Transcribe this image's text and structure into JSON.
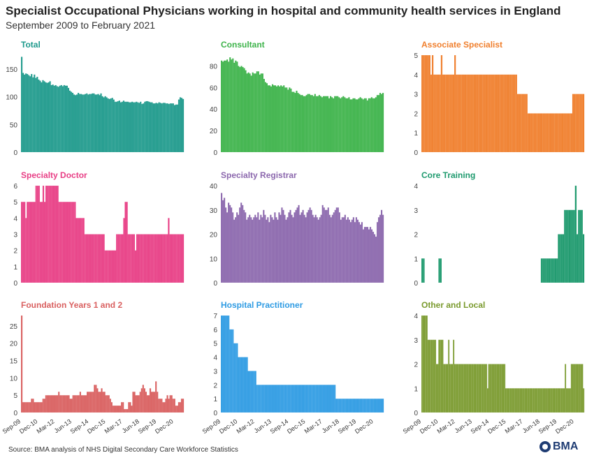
{
  "title": "Specialist Occupational Physicians working in hospital and community health services in England",
  "subtitle": "September 2009 to February 2021",
  "source": "Source: BMA analysis of NHS Digital Secondary Care Workforce Statistics",
  "logo_text": "BMA",
  "chart_data": [
    {
      "type": "bar",
      "title": "Total",
      "color": "#1e9a8c",
      "ylim": [
        0,
        175
      ],
      "yticks": [
        0,
        50,
        100,
        150
      ],
      "x_tick_labels": [],
      "series": [
        {
          "values": [
            172,
            143,
            140,
            142,
            141,
            139,
            137,
            141,
            135,
            140,
            134,
            136,
            131,
            129,
            126,
            130,
            128,
            126,
            125,
            126,
            128,
            121,
            122,
            120,
            121,
            119,
            118,
            120,
            121,
            119,
            121,
            120,
            120,
            116,
            111,
            109,
            107,
            104,
            103,
            104,
            107,
            105,
            105,
            104,
            104,
            105,
            106,
            104,
            105,
            105,
            106,
            106,
            104,
            104,
            105,
            103,
            106,
            101,
            99,
            101,
            99,
            97,
            96,
            97,
            98,
            95,
            91,
            91,
            92,
            93,
            90,
            91,
            93,
            91,
            91,
            91,
            90,
            90,
            91,
            90,
            90,
            91,
            90,
            89,
            91,
            87,
            88,
            91,
            92,
            92,
            91,
            90,
            90,
            88,
            88,
            89,
            88,
            90,
            89,
            88,
            89,
            89,
            88,
            88,
            87,
            88,
            88,
            88,
            85,
            86,
            86,
            95,
            99,
            98,
            96
          ]
        }
      ]
    },
    {
      "type": "bar",
      "title": "Consultant",
      "color": "#3db34a",
      "ylim": [
        0,
        90
      ],
      "yticks": [
        0,
        20,
        40,
        60,
        80
      ],
      "x_tick_labels": [],
      "series": [
        {
          "values": [
            85,
            84,
            85,
            85,
            86,
            84,
            88,
            86,
            87,
            83,
            85,
            84,
            80,
            79,
            80,
            79,
            78,
            76,
            73,
            74,
            73,
            71,
            74,
            73,
            73,
            75,
            75,
            72,
            73,
            73,
            68,
            65,
            64,
            62,
            62,
            61,
            63,
            62,
            62,
            61,
            62,
            61,
            62,
            61,
            62,
            60,
            60,
            58,
            60,
            59,
            56,
            56,
            55,
            57,
            55,
            54,
            53,
            53,
            52,
            52,
            53,
            54,
            54,
            53,
            53,
            52,
            54,
            52,
            52,
            53,
            52,
            51,
            52,
            52,
            52,
            52,
            50,
            52,
            51,
            50,
            52,
            52,
            52,
            51,
            50,
            51,
            52,
            51,
            50,
            50,
            51,
            49,
            49,
            50,
            50,
            49,
            49,
            50,
            51,
            50,
            49,
            50,
            50,
            48,
            50,
            50,
            51,
            50,
            50,
            51,
            53,
            53,
            55,
            54,
            55
          ]
        }
      ]
    },
    {
      "type": "bar",
      "title": "Associate Specialist",
      "color": "#f07f2d",
      "ylim": [
        0,
        5
      ],
      "yticks": [
        0,
        1,
        2,
        3,
        4,
        5
      ],
      "x_tick_labels": [],
      "series": [
        {
          "values": [
            5,
            5,
            5,
            5,
            5,
            5,
            4,
            5,
            4,
            4,
            4,
            4,
            4,
            5,
            4,
            4,
            4,
            4,
            4,
            4,
            4,
            4,
            5,
            4,
            4,
            4,
            4,
            4,
            4,
            4,
            4,
            4,
            4,
            4,
            4,
            4,
            4,
            4,
            4,
            4,
            4,
            4,
            4,
            4,
            4,
            4,
            4,
            4,
            4,
            4,
            4,
            4,
            4,
            4,
            4,
            4,
            4,
            4,
            4,
            4,
            4,
            4,
            4,
            4,
            3,
            3,
            3,
            3,
            3,
            3,
            3,
            2,
            2,
            2,
            2,
            2,
            2,
            2,
            2,
            2,
            2,
            2,
            2,
            2,
            2,
            2,
            2,
            2,
            2,
            2,
            2,
            2,
            2,
            2,
            2,
            2,
            2,
            2,
            2,
            2,
            2,
            3,
            3,
            3,
            3,
            3,
            3,
            3,
            3
          ]
        }
      ]
    },
    {
      "type": "bar",
      "title": "Specialty Doctor",
      "color": "#e83e85",
      "ylim": [
        0,
        6
      ],
      "yticks": [
        0,
        1,
        2,
        3,
        4,
        5,
        6
      ],
      "x_tick_labels": [],
      "series": [
        {
          "values": [
            5,
            5,
            5,
            4,
            5,
            5,
            5,
            5,
            5,
            5,
            6,
            6,
            6,
            5,
            5,
            6,
            5,
            6,
            6,
            6,
            6,
            6,
            6,
            6,
            6,
            6,
            5,
            5,
            5,
            5,
            5,
            5,
            5,
            5,
            5,
            5,
            5,
            5,
            4,
            4,
            4,
            4,
            4,
            4,
            3,
            3,
            3,
            3,
            3,
            3,
            3,
            3,
            3,
            3,
            3,
            3,
            3,
            3,
            2,
            2,
            2,
            2,
            2,
            2,
            2,
            2,
            3,
            3,
            3,
            3,
            3,
            4,
            5,
            5,
            3,
            3,
            3,
            3,
            3,
            2,
            3,
            3,
            3,
            3,
            3,
            3,
            3,
            3,
            3,
            3,
            3,
            3,
            3,
            3,
            3,
            3,
            3,
            3,
            3,
            3,
            3,
            3,
            4,
            3,
            3,
            3,
            3,
            3,
            3,
            3,
            3,
            3,
            3
          ]
        }
      ]
    },
    {
      "type": "bar",
      "title": "Specialty Registrar",
      "color": "#8b67ad",
      "ylim": [
        0,
        40
      ],
      "yticks": [
        0,
        10,
        20,
        30,
        40
      ],
      "x_tick_labels": [],
      "series": [
        {
          "values": [
            37,
            34,
            35,
            31,
            29,
            33,
            32,
            31,
            29,
            26,
            27,
            29,
            28,
            31,
            33,
            32,
            30,
            29,
            26,
            27,
            28,
            27,
            26,
            27,
            28,
            27,
            29,
            26,
            28,
            27,
            30,
            28,
            26,
            27,
            25,
            28,
            27,
            26,
            29,
            27,
            26,
            29,
            28,
            31,
            30,
            28,
            26,
            27,
            29,
            30,
            28,
            27,
            29,
            30,
            31,
            32,
            28,
            29,
            30,
            28,
            27,
            29,
            30,
            31,
            30,
            28,
            27,
            28,
            27,
            26,
            27,
            28,
            32,
            31,
            30,
            30,
            31,
            28,
            27,
            28,
            29,
            30,
            31,
            31,
            29,
            26,
            27,
            27,
            28,
            26,
            27,
            26,
            25,
            26,
            27,
            25,
            27,
            26,
            25,
            24,
            25,
            22,
            23,
            23,
            23,
            22,
            23,
            22,
            21,
            20,
            19,
            25,
            27,
            28,
            30,
            28
          ]
        }
      ]
    },
    {
      "type": "bar",
      "title": "Core Training",
      "color": "#1e9a6e",
      "ylim": [
        0,
        4
      ],
      "yticks": [
        0,
        1,
        2,
        3,
        4
      ],
      "x_tick_labels": [],
      "series": [
        {
          "values": [
            1,
            1,
            0,
            0,
            0,
            0,
            0,
            0,
            0,
            0,
            0,
            1,
            1,
            0,
            0,
            0,
            0,
            0,
            0,
            0,
            0,
            0,
            0,
            0,
            0,
            0,
            0,
            0,
            0,
            0,
            0,
            0,
            0,
            0,
            0,
            0,
            0,
            0,
            0,
            0,
            0,
            0,
            0,
            0,
            0,
            0,
            0,
            0,
            0,
            0,
            0,
            0,
            0,
            0,
            0,
            0,
            0,
            0,
            0,
            0,
            0,
            0,
            0,
            0,
            0,
            0,
            0,
            0,
            0,
            0,
            0,
            0,
            0,
            0,
            0,
            0,
            0,
            1,
            1,
            1,
            1,
            1,
            1,
            1,
            1,
            1,
            1,
            1,
            2,
            2,
            2,
            2,
            3,
            3,
            3,
            3,
            3,
            3,
            3,
            4,
            2,
            3,
            3,
            3,
            2
          ]
        }
      ]
    },
    {
      "type": "bar",
      "title": "Foundation Years 1 and 2",
      "color": "#d95f5f",
      "ylim": [
        0,
        28
      ],
      "yticks": [
        0,
        5,
        10,
        15,
        20,
        25
      ],
      "x_tick_labels": [
        "Sep-09",
        "Dec-10",
        "Mar-12",
        "Jun-13",
        "Sep-14",
        "Dec-15",
        "Mar-17",
        "Jun-18",
        "Sep-19",
        "Dec-20"
      ],
      "series": [
        {
          "values": [
            28,
            3,
            3,
            3,
            3,
            3,
            3,
            4,
            4,
            3,
            3,
            3,
            3,
            3,
            3,
            4,
            4,
            5,
            5,
            5,
            5,
            5,
            5,
            5,
            5,
            5,
            6,
            5,
            5,
            5,
            5,
            5,
            5,
            5,
            4,
            4,
            5,
            5,
            5,
            5,
            5,
            6,
            5,
            5,
            5,
            5,
            6,
            6,
            6,
            6,
            6,
            8,
            8,
            7,
            6,
            6,
            7,
            6,
            6,
            5,
            5,
            5,
            4,
            3,
            2,
            2,
            2,
            2,
            2,
            2,
            3,
            3,
            1,
            1,
            1,
            3,
            3,
            2,
            6,
            6,
            5,
            5,
            5,
            6,
            7,
            8,
            7,
            6,
            5,
            5,
            7,
            6,
            6,
            6,
            9,
            6,
            4,
            4,
            4,
            3,
            3,
            4,
            5,
            4,
            5,
            5,
            4,
            4,
            2,
            2,
            3,
            3,
            4,
            4
          ]
        }
      ]
    },
    {
      "type": "bar",
      "title": "Hospital Practitioner",
      "color": "#2e9be3",
      "ylim": [
        0,
        7
      ],
      "yticks": [
        0,
        1,
        2,
        3,
        4,
        5,
        6,
        7
      ],
      "x_tick_labels": [
        "Sep-09",
        "Dec-10",
        "Mar-12",
        "Jun-13",
        "Sep-14",
        "Dec-15",
        "Mar-17",
        "Jun-18",
        "Sep-19",
        "Dec-20"
      ],
      "series": [
        {
          "values": [
            7,
            7,
            7,
            7,
            7,
            7,
            6,
            6,
            6,
            5,
            5,
            5,
            4,
            4,
            4,
            4,
            4,
            4,
            4,
            3,
            3,
            3,
            3,
            3,
            3,
            2,
            2,
            2,
            2,
            2,
            2,
            2,
            2,
            2,
            2,
            2,
            2,
            2,
            2,
            2,
            2,
            2,
            2,
            2,
            2,
            2,
            2,
            2,
            2,
            2,
            2,
            2,
            2,
            2,
            2,
            2,
            2,
            2,
            2,
            2,
            2,
            2,
            2,
            2,
            2,
            2,
            2,
            2,
            2,
            2,
            2,
            2,
            2,
            2,
            2,
            2,
            2,
            2,
            2,
            2,
            2,
            1,
            1,
            1,
            1,
            1,
            1,
            1,
            1,
            1,
            1,
            1,
            1,
            1,
            1,
            1,
            1,
            1,
            1,
            1,
            1,
            1,
            1,
            1,
            1,
            1,
            1,
            1,
            1,
            1,
            1,
            1,
            1,
            1,
            1
          ]
        }
      ]
    },
    {
      "type": "bar",
      "title": "Other and Local",
      "color": "#7a9a2e",
      "ylim": [
        0,
        4
      ],
      "yticks": [
        0,
        1,
        2,
        3,
        4
      ],
      "x_tick_labels": [
        "Sep-09",
        "Dec-10",
        "Mar-12",
        "Jun-13",
        "Sep-14",
        "Dec-15",
        "Mar-17",
        "Jun-18",
        "Sep-19",
        "Dec-20"
      ],
      "series": [
        {
          "values": [
            4,
            4,
            4,
            4,
            4,
            3,
            3,
            3,
            3,
            3,
            3,
            3,
            2,
            2,
            3,
            3,
            3,
            3,
            2,
            2,
            2,
            2,
            3,
            2,
            2,
            2,
            3,
            2,
            2,
            2,
            2,
            2,
            2,
            2,
            2,
            2,
            2,
            2,
            2,
            2,
            2,
            2,
            2,
            2,
            2,
            2,
            2,
            2,
            2,
            2,
            2,
            2,
            2,
            2,
            1,
            2,
            2,
            2,
            2,
            2,
            2,
            2,
            2,
            2,
            2,
            2,
            2,
            2,
            2,
            1,
            1,
            1,
            1,
            1,
            1,
            1,
            1,
            1,
            1,
            1,
            1,
            1,
            1,
            1,
            1,
            1,
            1,
            1,
            1,
            1,
            1,
            1,
            1,
            1,
            1,
            1,
            1,
            1,
            1,
            1,
            1,
            1,
            1,
            1,
            1,
            1,
            1,
            1,
            1,
            1,
            1,
            1,
            1,
            1,
            1,
            1,
            1,
            1,
            2,
            1,
            1,
            1,
            1,
            2,
            2,
            2,
            2,
            2,
            2,
            2,
            2,
            2,
            2,
            1
          ]
        }
      ]
    }
  ]
}
